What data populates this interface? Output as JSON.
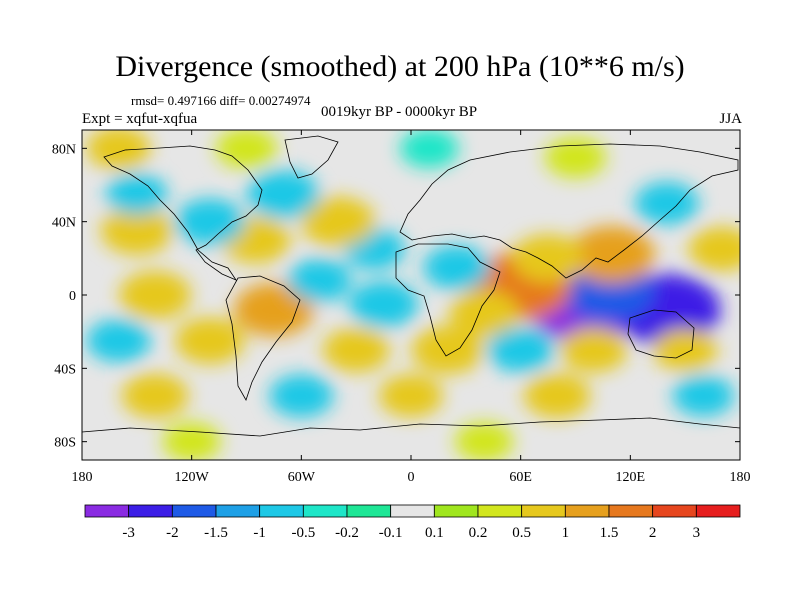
{
  "title": "Divergence (smoothed) at 200 hPa (10**6 m/s)",
  "stats": "rmsd= 0.497166 diff= 0.00274974",
  "experiment": "Expt = xqfut-xqfua",
  "period": "0019kyr BP - 0000kyr BP",
  "season": "JJA",
  "map": {
    "projection": "cylindrical-equidistant",
    "lon_range": [
      -180,
      180
    ],
    "lat_range": [
      -90,
      90
    ],
    "lat_ticks": [
      {
        "value": 80,
        "label": "80N"
      },
      {
        "value": 40,
        "label": "40N"
      },
      {
        "value": 0,
        "label": "0"
      },
      {
        "value": -40,
        "label": "40S"
      },
      {
        "value": -80,
        "label": "80S"
      }
    ],
    "lon_ticks": [
      {
        "value": -180,
        "label": "180"
      },
      {
        "value": -120,
        "label": "120W"
      },
      {
        "value": -60,
        "label": "60W"
      },
      {
        "value": 0,
        "label": "0"
      },
      {
        "value": 60,
        "label": "60E"
      },
      {
        "value": 120,
        "label": "120E"
      },
      {
        "value": 180,
        "label": "180"
      }
    ]
  },
  "colorbar": {
    "colors": [
      "#8a2be2",
      "#3c1ee6",
      "#1e5ae6",
      "#1ea0e6",
      "#1ec8e6",
      "#1ee6c8",
      "#1ee696",
      "#e6e6e6",
      "#a0e61e",
      "#d2e61e",
      "#e6c81e",
      "#e6a01e",
      "#e6781e",
      "#e6461e",
      "#e61e1e"
    ],
    "labels": [
      "-3",
      "-2",
      "-1.5",
      "-1",
      "-0.5",
      "-0.2",
      "-0.1",
      "0.1",
      "0.2",
      "0.5",
      "1",
      "1.5",
      "2",
      "3"
    ]
  },
  "field_blobs": [
    {
      "lon": 95,
      "lat": -5,
      "value": -3.2
    },
    {
      "lon": 140,
      "lat": -8,
      "value": -2.2
    },
    {
      "lon": 108,
      "lat": 2,
      "value": -1.6
    },
    {
      "lon": 60,
      "lat": 5,
      "value": 2.0
    },
    {
      "lon": 110,
      "lat": 22,
      "value": 1.4
    },
    {
      "lon": 75,
      "lat": 20,
      "value": 0.9
    },
    {
      "lon": 25,
      "lat": 15,
      "value": -0.7
    },
    {
      "lon": 40,
      "lat": -10,
      "value": 0.8
    },
    {
      "lon": -20,
      "lat": 25,
      "value": -0.5
    },
    {
      "lon": -40,
      "lat": 40,
      "value": 1.0
    },
    {
      "lon": -70,
      "lat": 55,
      "value": -0.9
    },
    {
      "lon": -85,
      "lat": 30,
      "value": 0.8
    },
    {
      "lon": -110,
      "lat": 40,
      "value": -0.8
    },
    {
      "lon": -150,
      "lat": 35,
      "value": 0.9
    },
    {
      "lon": -150,
      "lat": 55,
      "value": -0.5
    },
    {
      "lon": -160,
      "lat": 80,
      "value": 0.6
    },
    {
      "lon": -90,
      "lat": 80,
      "value": 0.5
    },
    {
      "lon": 10,
      "lat": 80,
      "value": -0.4
    },
    {
      "lon": 90,
      "lat": 75,
      "value": 0.5
    },
    {
      "lon": 140,
      "lat": 50,
      "value": -0.6
    },
    {
      "lon": 170,
      "lat": 25,
      "value": 0.7
    },
    {
      "lon": -140,
      "lat": 0,
      "value": 0.9
    },
    {
      "lon": -75,
      "lat": -8,
      "value": 1.2
    },
    {
      "lon": -50,
      "lat": 8,
      "value": -0.6
    },
    {
      "lon": -15,
      "lat": -5,
      "value": -0.8
    },
    {
      "lon": -30,
      "lat": -30,
      "value": 0.7
    },
    {
      "lon": -110,
      "lat": -25,
      "value": 0.8
    },
    {
      "lon": -160,
      "lat": -25,
      "value": -0.6
    },
    {
      "lon": 20,
      "lat": -30,
      "value": 0.9
    },
    {
      "lon": 60,
      "lat": -30,
      "value": -0.7
    },
    {
      "lon": 100,
      "lat": -30,
      "value": 0.7
    },
    {
      "lon": 150,
      "lat": -30,
      "value": 0.6
    },
    {
      "lon": -140,
      "lat": -55,
      "value": 0.7
    },
    {
      "lon": -60,
      "lat": -55,
      "value": -0.6
    },
    {
      "lon": 0,
      "lat": -55,
      "value": 0.6
    },
    {
      "lon": 80,
      "lat": -55,
      "value": 0.7
    },
    {
      "lon": 160,
      "lat": -55,
      "value": -0.5
    },
    {
      "lon": -120,
      "lat": -80,
      "value": 0.4
    },
    {
      "lon": 40,
      "lat": -80,
      "value": 0.4
    }
  ]
}
